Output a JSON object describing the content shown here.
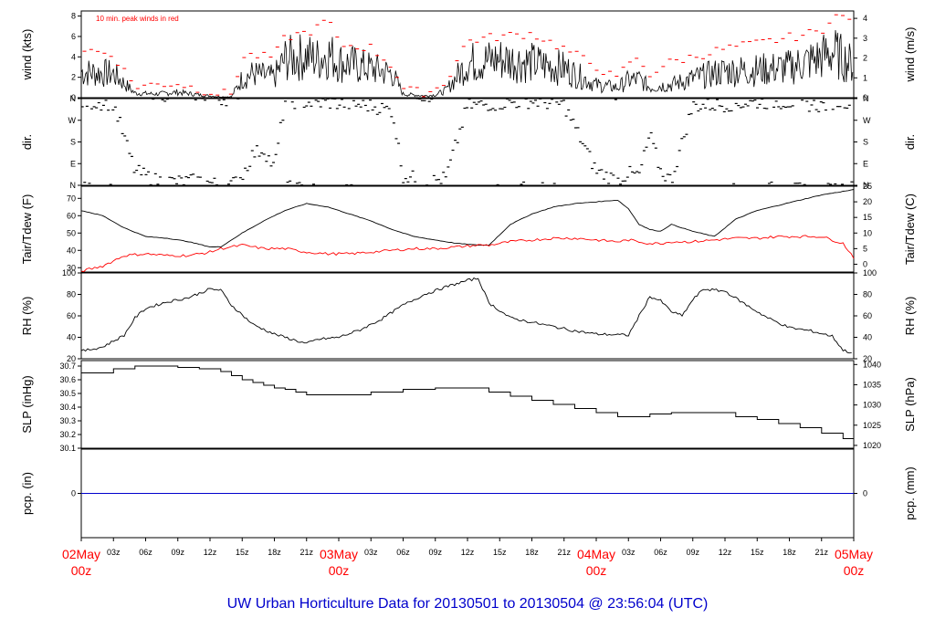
{
  "title": "UW Urban Horticulture Data for 20130501  to  20130504 @ 23:56:04  (UTC)",
  "annotation": "10 min. peak winds in red",
  "colors": {
    "main": "#000000",
    "peak": "#ff0000",
    "tdew": "#ff0000",
    "pcp": "#0000cc",
    "days": "#ff0000",
    "title": "#0000cc"
  },
  "x_axis": {
    "hour_ticks": [
      "03z",
      "06z",
      "09z",
      "12z",
      "15z",
      "18z",
      "21z",
      "03z",
      "06z",
      "09z",
      "12z",
      "15z",
      "18z",
      "21z",
      "03z",
      "06z",
      "09z",
      "12z",
      "15z",
      "18z",
      "21z"
    ],
    "day_labels": [
      {
        "day": "02May",
        "hour": "00z"
      },
      {
        "day": "03May",
        "hour": "00z"
      },
      {
        "day": "04May",
        "hour": "00z"
      },
      {
        "day": "05May",
        "hour": "00z"
      }
    ]
  },
  "chart_data": [
    {
      "type": "line",
      "name": "wind",
      "ylabel_left": "wind (kts)",
      "ylabel_right": "wind (m/s)",
      "yticks_left": [
        "0",
        "2",
        "4",
        "6",
        "8"
      ],
      "yticks_right": [
        "0",
        "1",
        "2",
        "3",
        "4"
      ],
      "ylim": [
        0,
        8.5
      ],
      "x_hours": [
        0,
        3,
        5,
        7,
        9,
        11,
        13,
        14,
        15,
        16,
        17,
        18,
        19,
        21,
        22,
        23,
        24,
        27,
        29,
        30,
        31,
        32,
        33,
        34,
        36,
        39,
        42,
        45,
        48,
        50,
        51,
        52,
        53,
        54,
        55,
        57,
        60,
        63,
        66,
        69,
        70,
        72
      ],
      "series": [
        {
          "values": [
            2.8,
            2.6,
            0.5,
            0.4,
            0.6,
            0.3,
            0.1,
            0.1,
            2.1,
            2.6,
            2.4,
            2.2,
            4.2,
            4.5,
            4.2,
            4.8,
            3.9,
            3.2,
            2.6,
            0.4,
            0.3,
            0.2,
            0.3,
            0.8,
            3.8,
            4.2,
            3.8,
            3.2,
            1.4,
            1.1,
            1.9,
            2.0,
            1.1,
            1.3,
            1.4,
            2.1,
            2.9,
            3.0,
            3.3,
            4.4,
            5.0,
            3.5
          ]
        },
        {
          "values": [
            4.8,
            4.2,
            1.1,
            1.3,
            1.4,
            0.8,
            0.4,
            0.4,
            3.9,
            4.2,
            4.0,
            4.0,
            5.9,
            6.4,
            6.8,
            7.8,
            5.2,
            4.9,
            3.1,
            0.9,
            0.6,
            0.5,
            0.8,
            1.6,
            5.6,
            6.0,
            6.3,
            4.8,
            3.1,
            1.7,
            3.6,
            3.6,
            2.3,
            3.0,
            3.5,
            4.0,
            4.8,
            5.3,
            5.9,
            6.5,
            8.2,
            7.4
          ]
        }
      ]
    },
    {
      "type": "scatter",
      "name": "direction",
      "ylabel_left": "dir.",
      "ylabel_right": "dir.",
      "yticks_left": [
        "N",
        "E",
        "S",
        "W",
        "N"
      ],
      "yticks_right": [
        "N",
        "E",
        "S",
        "W",
        "N"
      ],
      "ylim": [
        0,
        360
      ],
      "x_hours": [
        0,
        3,
        5,
        7,
        9,
        11,
        13,
        14,
        15,
        16,
        17,
        18,
        19,
        21,
        22,
        23,
        24,
        27,
        29,
        30,
        31,
        32,
        33,
        34,
        36,
        39,
        42,
        45,
        48,
        50,
        51,
        52,
        53,
        54,
        55,
        57,
        60,
        63,
        66,
        69,
        70,
        72
      ],
      "values": [
        345,
        340,
        60,
        20,
        15,
        20,
        0,
        0,
        40,
        130,
        150,
        70,
        350,
        345,
        340,
        345,
        340,
        330,
        310,
        40,
        30,
        10,
        20,
        30,
        330,
        340,
        350,
        335,
        60,
        20,
        50,
        40,
        210,
        60,
        20,
        330,
        335,
        345,
        345,
        330,
        345,
        350
      ]
    },
    {
      "type": "line",
      "name": "temperature",
      "ylabel_left": "Tair/Tdew (F)",
      "ylabel_right": "Tair/Tdew (C)",
      "yticks_left": [
        "30",
        "40",
        "50",
        "60",
        "70"
      ],
      "yticks_right": [
        "0",
        "5",
        "10",
        "15",
        "20",
        "25"
      ],
      "ylim": [
        27.5,
        77
      ],
      "x_hours": [
        0,
        2,
        4,
        6,
        8,
        10,
        12,
        13,
        15,
        17,
        19,
        21,
        23,
        25,
        27,
        29,
        31,
        33,
        35,
        37,
        38,
        40,
        42,
        44,
        46,
        48,
        50,
        51,
        52,
        53,
        54,
        55,
        57,
        59,
        61,
        63,
        65,
        67,
        69,
        71,
        72
      ],
      "series": [
        {
          "name": "Tair",
          "values": [
            63,
            60,
            53,
            48,
            47,
            45,
            42,
            42,
            50,
            57,
            63,
            67,
            65,
            61,
            57,
            52,
            48,
            46,
            44,
            43,
            43,
            55,
            61,
            65,
            67,
            68,
            69,
            64,
            55,
            52,
            51,
            55,
            51,
            48,
            58,
            63,
            66,
            69,
            72,
            74,
            75
          ]
        },
        {
          "name": "Tdew",
          "values": [
            28,
            31,
            37,
            38,
            37,
            37,
            39,
            41,
            43,
            41,
            41,
            39,
            38,
            38,
            39,
            40,
            41,
            41,
            42,
            43,
            43,
            45,
            46,
            47,
            47,
            46,
            45,
            46,
            45,
            44,
            44,
            45,
            45,
            46,
            47,
            47,
            48,
            48,
            48,
            44,
            36
          ]
        }
      ]
    },
    {
      "type": "line",
      "name": "relative humidity",
      "ylabel_left": "RH (%)",
      "ylabel_right": "RH (%)",
      "yticks_left": [
        "20",
        "40",
        "60",
        "80",
        "100"
      ],
      "yticks_right": [
        "20",
        "40",
        "60",
        "80",
        "100"
      ],
      "ylim": [
        20,
        100
      ],
      "x_hours": [
        0,
        2,
        4,
        5,
        6,
        8,
        10,
        12,
        13,
        14,
        16,
        18,
        20,
        21,
        22,
        24,
        26,
        28,
        30,
        32,
        34,
        36,
        37,
        38,
        40,
        42,
        44,
        46,
        48,
        51,
        52,
        53,
        54,
        55,
        56,
        57,
        58,
        60,
        62,
        64,
        66,
        68,
        70,
        71,
        72
      ],
      "values": [
        27,
        31,
        42,
        58,
        67,
        73,
        77,
        85,
        84,
        70,
        52,
        43,
        37,
        34,
        38,
        40,
        47,
        57,
        70,
        80,
        87,
        93,
        95,
        72,
        58,
        54,
        50,
        46,
        43,
        42,
        60,
        78,
        74,
        64,
        60,
        75,
        85,
        83,
        70,
        58,
        49,
        46,
        41,
        28,
        25
      ]
    },
    {
      "type": "line",
      "name": "sea level pressure",
      "ylabel_left": "SLP (inHg)",
      "ylabel_right": "SLP (hPa)",
      "yticks_left": [
        "30.1",
        "30.2",
        "30.3",
        "30.4",
        "30.5",
        "30.6",
        "30.7"
      ],
      "yticks_right": [
        "1020",
        "1025",
        "1030",
        "1035",
        "1040"
      ],
      "ylim": [
        30.1,
        30.74
      ],
      "x_hours": [
        0,
        3,
        5,
        7,
        9,
        11,
        13,
        14,
        15,
        16,
        17,
        18,
        19,
        20,
        21,
        25,
        27,
        30,
        33,
        36,
        38,
        40,
        42,
        44,
        46,
        48,
        50,
        53,
        55,
        57,
        59,
        61,
        63,
        65,
        67,
        69,
        71,
        72
      ],
      "values": [
        30.65,
        30.68,
        30.7,
        30.7,
        30.69,
        30.68,
        30.66,
        30.63,
        30.6,
        30.58,
        30.56,
        30.54,
        30.53,
        30.51,
        30.49,
        30.49,
        30.51,
        30.53,
        30.54,
        30.54,
        30.51,
        30.48,
        30.45,
        30.42,
        30.39,
        30.36,
        30.33,
        30.35,
        30.36,
        30.36,
        30.36,
        30.33,
        30.31,
        30.28,
        30.25,
        30.21,
        30.17,
        30.13
      ]
    },
    {
      "type": "line",
      "name": "precipitation",
      "ylabel_left": "pcp. (in)",
      "ylabel_right": "pcp. (mm)",
      "yticks_left": [
        "0"
      ],
      "yticks_right": [
        "0"
      ],
      "ylim": [
        -1,
        1
      ],
      "x_hours": [
        0,
        72
      ],
      "values": [
        0,
        0
      ]
    }
  ]
}
